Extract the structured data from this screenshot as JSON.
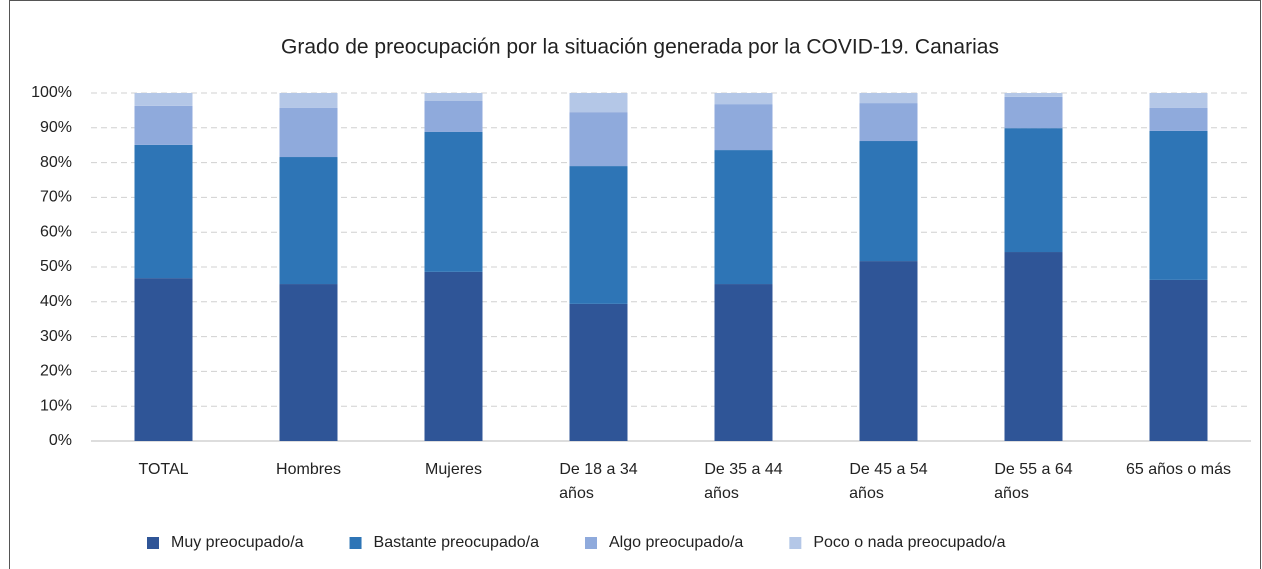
{
  "chart_data": {
    "type": "stacked_bar",
    "title": "Grado de preocupación por la situación generada por la COVID-19. Canarias",
    "categories": [
      "TOTAL",
      "Hombres",
      "Mujeres",
      "De 18 a 34 años",
      "De 35 a 44 años",
      "De 45 a 54 años",
      "De 55 a 64 años",
      "65 años o más"
    ],
    "series": [
      {
        "name": "Muy preocupado/a",
        "color": "#2f5597",
        "values": [
          46.8,
          45.1,
          48.6,
          39.4,
          45.1,
          51.7,
          54.3,
          46.3
        ]
      },
      {
        "name": "Bastante preocupado/a",
        "color": "#2e75b6",
        "values": [
          38.3,
          36.5,
          40.2,
          39.6,
          38.5,
          34.5,
          35.6,
          42.8
        ]
      },
      {
        "name": "Algo preocupado/a",
        "color": "#8faadc",
        "values": [
          11.2,
          14.1,
          8.9,
          15.5,
          13.2,
          10.9,
          9.0,
          6.6
        ]
      },
      {
        "name": "Poco o nada preocupado/a",
        "color": "#b4c7e7",
        "values": [
          3.7,
          4.3,
          2.3,
          5.5,
          3.2,
          2.9,
          1.1,
          4.3
        ]
      }
    ],
    "ylim": [
      0,
      100
    ],
    "yticks": [
      {
        "value": 0,
        "label": "0%"
      },
      {
        "value": 10,
        "label": "10%"
      },
      {
        "value": 20,
        "label": "20%"
      },
      {
        "value": 30,
        "label": "30%"
      },
      {
        "value": 40,
        "label": "40%"
      },
      {
        "value": 50,
        "label": "50%"
      },
      {
        "value": 60,
        "label": "60%"
      },
      {
        "value": 70,
        "label": "70%"
      },
      {
        "value": 80,
        "label": "80%"
      },
      {
        "value": 90,
        "label": "90%"
      },
      {
        "value": 100,
        "label": "100%"
      }
    ],
    "grid": true,
    "legend": "bottom"
  }
}
